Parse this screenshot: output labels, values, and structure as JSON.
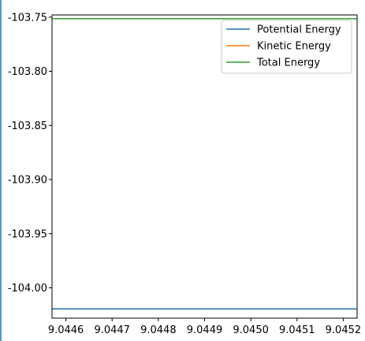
{
  "chart_data": {
    "type": "line",
    "title": "",
    "xlabel": "",
    "ylabel": "",
    "xlim": [
      9.04457,
      9.04523
    ],
    "ylim": [
      -104.028,
      -103.748
    ],
    "x_ticks": [
      9.0446,
      9.0447,
      9.0448,
      9.0449,
      9.045,
      9.0451,
      9.0452
    ],
    "x_tick_labels": [
      "9.0446",
      "9.0447",
      "9.0448",
      "9.0449",
      "9.0450",
      "9.0451",
      "9.0452"
    ],
    "y_ticks": [
      -103.75,
      -103.8,
      -103.85,
      -103.9,
      -103.95,
      -104.0
    ],
    "y_tick_labels": [
      "-103.75",
      "-103.80",
      "-103.85",
      "-103.90",
      "-103.95",
      "-104.00"
    ],
    "grid": false,
    "legend_position": "top-right",
    "series": [
      {
        "name": "Potential Energy",
        "color": "#1f77b4",
        "x": [
          9.04457,
          9.04523
        ],
        "y": [
          -104.0195,
          -104.0195
        ]
      },
      {
        "name": "Kinetic Energy",
        "color": "#ff7f0e",
        "x": [
          9.04457,
          9.04523
        ],
        "y": [
          -103.7515,
          -103.7515
        ]
      },
      {
        "name": "Total Energy",
        "color": "#2ca02c",
        "x": [
          9.04457,
          9.04523
        ],
        "y": [
          -103.7515,
          -103.7515
        ]
      }
    ]
  }
}
